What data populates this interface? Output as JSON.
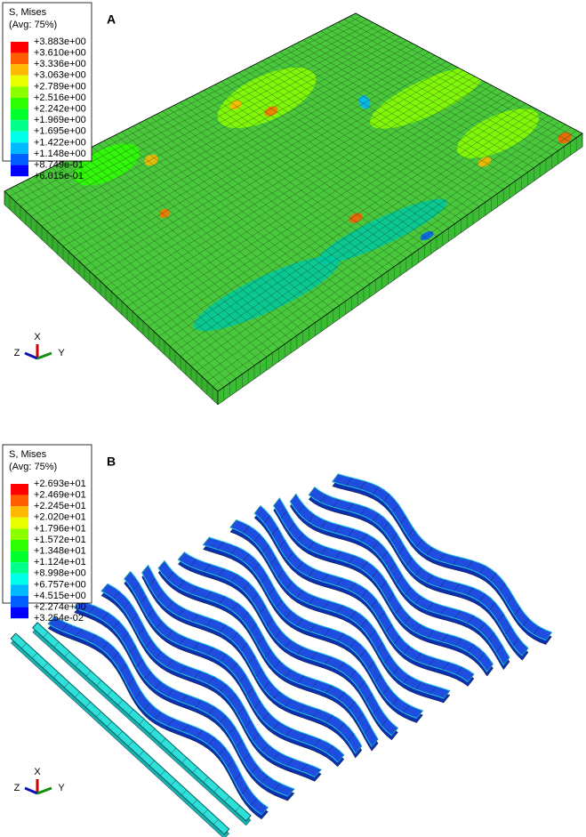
{
  "panels": [
    {
      "label": "A",
      "legend": {
        "title": "S, Mises",
        "subtitle": "(Avg: 75%)",
        "values": [
          "+3.883e+00",
          "+3.610e+00",
          "+3.336e+00",
          "+3.063e+00",
          "+2.789e+00",
          "+2.516e+00",
          "+2.242e+00",
          "+1.969e+00",
          "+1.695e+00",
          "+1.422e+00",
          "+1.148e+00",
          "+8.749e-01",
          "+6.015e-01"
        ]
      },
      "axes": {
        "x": "X",
        "y": "Y",
        "z": "Z"
      }
    },
    {
      "label": "B",
      "legend": {
        "title": "S, Mises",
        "subtitle": "(Avg: 75%)",
        "values": [
          "+2.693e+01",
          "+2.469e+01",
          "+2.245e+01",
          "+2.020e+01",
          "+1.796e+01",
          "+1.572e+01",
          "+1.348e+01",
          "+1.124e+01",
          "+8.998e+00",
          "+6.757e+00",
          "+4.515e+00",
          "+2.274e+00",
          "+3.254e-02"
        ]
      },
      "axes": {
        "x": "X",
        "y": "Y",
        "z": "Z"
      }
    }
  ]
}
